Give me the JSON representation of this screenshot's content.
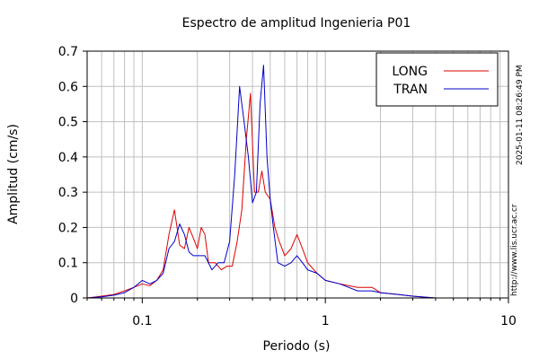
{
  "chart_data": {
    "type": "line",
    "title": "Espectro de amplitud Ingenieria P01",
    "xlabel": "Periodo (s)",
    "ylabel": "Amplitud (cm/s)",
    "x_scale": "log",
    "xlim": [
      0.05,
      10
    ],
    "ylim": [
      0,
      0.7
    ],
    "x_ticks": [
      "0.1",
      "1",
      "10"
    ],
    "y_ticks": [
      "0",
      "0.1",
      "0.2",
      "0.3",
      "0.4",
      "0.5",
      "0.6",
      "0.7"
    ],
    "grid": true,
    "legend_position": "top-right",
    "series": [
      {
        "name": "LONG",
        "color": "#dd0000",
        "points": [
          [
            0.05,
            0.0
          ],
          [
            0.06,
            0.005
          ],
          [
            0.07,
            0.01
          ],
          [
            0.08,
            0.02
          ],
          [
            0.09,
            0.03
          ],
          [
            0.1,
            0.04
          ],
          [
            0.11,
            0.035
          ],
          [
            0.12,
            0.05
          ],
          [
            0.13,
            0.08
          ],
          [
            0.14,
            0.18
          ],
          [
            0.15,
            0.25
          ],
          [
            0.16,
            0.15
          ],
          [
            0.17,
            0.14
          ],
          [
            0.18,
            0.2
          ],
          [
            0.19,
            0.17
          ],
          [
            0.2,
            0.14
          ],
          [
            0.21,
            0.2
          ],
          [
            0.22,
            0.18
          ],
          [
            0.23,
            0.1
          ],
          [
            0.25,
            0.1
          ],
          [
            0.27,
            0.08
          ],
          [
            0.29,
            0.09
          ],
          [
            0.31,
            0.09
          ],
          [
            0.33,
            0.16
          ],
          [
            0.35,
            0.25
          ],
          [
            0.37,
            0.45
          ],
          [
            0.39,
            0.58
          ],
          [
            0.41,
            0.3
          ],
          [
            0.43,
            0.3
          ],
          [
            0.45,
            0.36
          ],
          [
            0.47,
            0.3
          ],
          [
            0.5,
            0.28
          ],
          [
            0.53,
            0.2
          ],
          [
            0.56,
            0.16
          ],
          [
            0.6,
            0.12
          ],
          [
            0.65,
            0.14
          ],
          [
            0.7,
            0.18
          ],
          [
            0.75,
            0.14
          ],
          [
            0.8,
            0.1
          ],
          [
            0.9,
            0.07
          ],
          [
            1.0,
            0.05
          ],
          [
            1.2,
            0.04
          ],
          [
            1.5,
            0.03
          ],
          [
            1.8,
            0.03
          ],
          [
            2.0,
            0.015
          ],
          [
            2.5,
            0.01
          ],
          [
            3.0,
            0.005
          ],
          [
            4.0,
            0.0
          ],
          [
            10.0,
            0.0
          ]
        ]
      },
      {
        "name": "TRAN",
        "color": "#0000cc",
        "points": [
          [
            0.05,
            0.0
          ],
          [
            0.06,
            0.003
          ],
          [
            0.07,
            0.008
          ],
          [
            0.08,
            0.015
          ],
          [
            0.09,
            0.03
          ],
          [
            0.1,
            0.05
          ],
          [
            0.11,
            0.04
          ],
          [
            0.12,
            0.05
          ],
          [
            0.13,
            0.07
          ],
          [
            0.14,
            0.14
          ],
          [
            0.15,
            0.16
          ],
          [
            0.16,
            0.21
          ],
          [
            0.17,
            0.18
          ],
          [
            0.18,
            0.13
          ],
          [
            0.19,
            0.12
          ],
          [
            0.2,
            0.12
          ],
          [
            0.22,
            0.12
          ],
          [
            0.24,
            0.08
          ],
          [
            0.26,
            0.1
          ],
          [
            0.28,
            0.1
          ],
          [
            0.3,
            0.16
          ],
          [
            0.32,
            0.35
          ],
          [
            0.34,
            0.6
          ],
          [
            0.36,
            0.5
          ],
          [
            0.38,
            0.4
          ],
          [
            0.4,
            0.27
          ],
          [
            0.42,
            0.3
          ],
          [
            0.44,
            0.55
          ],
          [
            0.46,
            0.66
          ],
          [
            0.48,
            0.4
          ],
          [
            0.5,
            0.28
          ],
          [
            0.52,
            0.2
          ],
          [
            0.55,
            0.1
          ],
          [
            0.6,
            0.09
          ],
          [
            0.65,
            0.1
          ],
          [
            0.7,
            0.12
          ],
          [
            0.75,
            0.1
          ],
          [
            0.8,
            0.08
          ],
          [
            0.9,
            0.07
          ],
          [
            1.0,
            0.05
          ],
          [
            1.2,
            0.04
          ],
          [
            1.5,
            0.02
          ],
          [
            1.8,
            0.02
          ],
          [
            2.0,
            0.015
          ],
          [
            2.5,
            0.01
          ],
          [
            3.0,
            0.005
          ],
          [
            4.0,
            0.0
          ],
          [
            10.0,
            0.0
          ]
        ]
      }
    ]
  },
  "side_text": {
    "timestamp": "2025-01-11 08:26:49 PM",
    "url": "http://www.lis.ucr.ac.cr"
  }
}
